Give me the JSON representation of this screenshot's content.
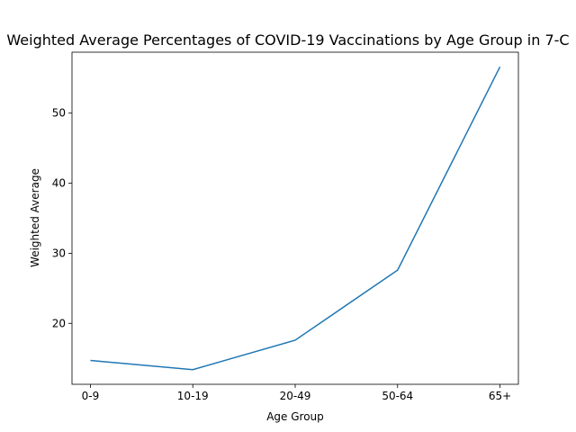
{
  "chart_data": {
    "type": "line",
    "title": "Weighted Average Percentages of COVID-19 Vaccinations by Age Group in 7-C",
    "xlabel": "Age Group",
    "ylabel": "Weighted Average",
    "categories": [
      "0-9",
      "10-19",
      "20-49",
      "50-64",
      "65+"
    ],
    "series": [
      {
        "values": [
          14.7,
          13.4,
          17.6,
          27.6,
          56.6
        ],
        "color": "#1f77b4"
      }
    ],
    "ylim": [
      11.3,
      58.7
    ],
    "yticks": [
      20,
      30,
      40,
      50
    ],
    "ytick_labels": [
      "20",
      "30",
      "40",
      "50"
    ],
    "grid": false,
    "legend": "none"
  }
}
